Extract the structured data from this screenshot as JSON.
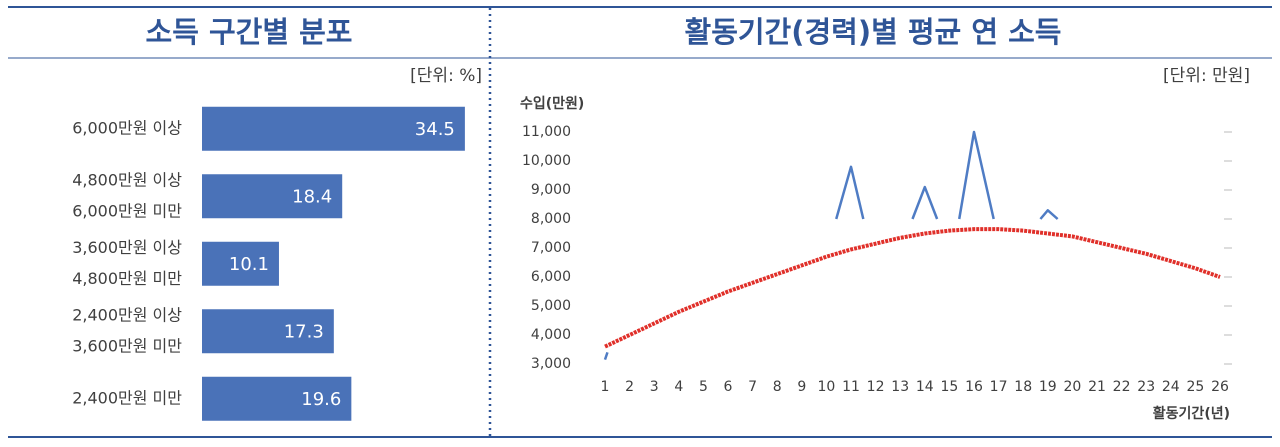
{
  "chart_data": [
    {
      "type": "hbar",
      "title": "소득 구간별 분포",
      "unit": "[단위: %]",
      "color": "#4a72b8",
      "categories": [
        [
          "6,000만원 이상"
        ],
        [
          "4,800만원 이상",
          "6,000만원 미만"
        ],
        [
          "3,600만원 이상",
          "4,800만원 미만"
        ],
        [
          "2,400만원 이상",
          "3,600만원 미만"
        ],
        [
          "2,400만원 미만"
        ]
      ],
      "values": [
        34.5,
        18.4,
        10.1,
        17.3,
        19.6
      ]
    },
    {
      "type": "line",
      "title": "활동기간(경력)별 평균 연 소득",
      "unit": "[단위: 만원]",
      "ylabel": "수입(만원)",
      "xlabel": "활동기간(년)",
      "xlim": [
        1,
        26
      ],
      "xticks": [
        1,
        2,
        3,
        4,
        5,
        6,
        7,
        8,
        9,
        10,
        11,
        12,
        13,
        14,
        15,
        16,
        17,
        18,
        19,
        20,
        21,
        22,
        23,
        24,
        25,
        26
      ],
      "ylim": [
        3000,
        11000
      ],
      "yticks": [
        {
          "value": 3000,
          "label": "3,000"
        },
        {
          "value": 4000,
          "label": "4,000"
        },
        {
          "value": 5000,
          "label": "5,000"
        },
        {
          "value": 6000,
          "label": "6,000"
        },
        {
          "value": 7000,
          "label": "7,000"
        },
        {
          "value": 8000,
          "label": "8,000"
        },
        {
          "value": 9000,
          "label": "9,000"
        },
        {
          "value": 10000,
          "label": "10,000"
        },
        {
          "value": 11000,
          "label": "11,000"
        }
      ],
      "series": [
        {
          "color": "#4f7cc4",
          "x": [
            1,
            1.1,
            null,
            10.4,
            11,
            11.5,
            null,
            13.5,
            14,
            14.5,
            null,
            15.4,
            16,
            16.8,
            null,
            18.7,
            19,
            19.4
          ],
          "values": [
            3150,
            3400,
            null,
            8000,
            9800,
            8000,
            null,
            8000,
            9100,
            8000,
            null,
            8000,
            11000,
            8000,
            null,
            8000,
            8300,
            8000
          ]
        },
        {
          "color": "#e0302a",
          "x": [
            1,
            2,
            3,
            4,
            5,
            6,
            7,
            8,
            9,
            10,
            11,
            12,
            13,
            14,
            15,
            16,
            17,
            18,
            19,
            20,
            21,
            22,
            23,
            24,
            25,
            26
          ],
          "values": [
            3600,
            4000,
            4400,
            4800,
            5150,
            5500,
            5800,
            6100,
            6400,
            6700,
            6950,
            7150,
            7350,
            7500,
            7600,
            7650,
            7650,
            7600,
            7500,
            7400,
            7200,
            7000,
            6800,
            6550,
            6300,
            6000
          ]
        }
      ]
    }
  ]
}
